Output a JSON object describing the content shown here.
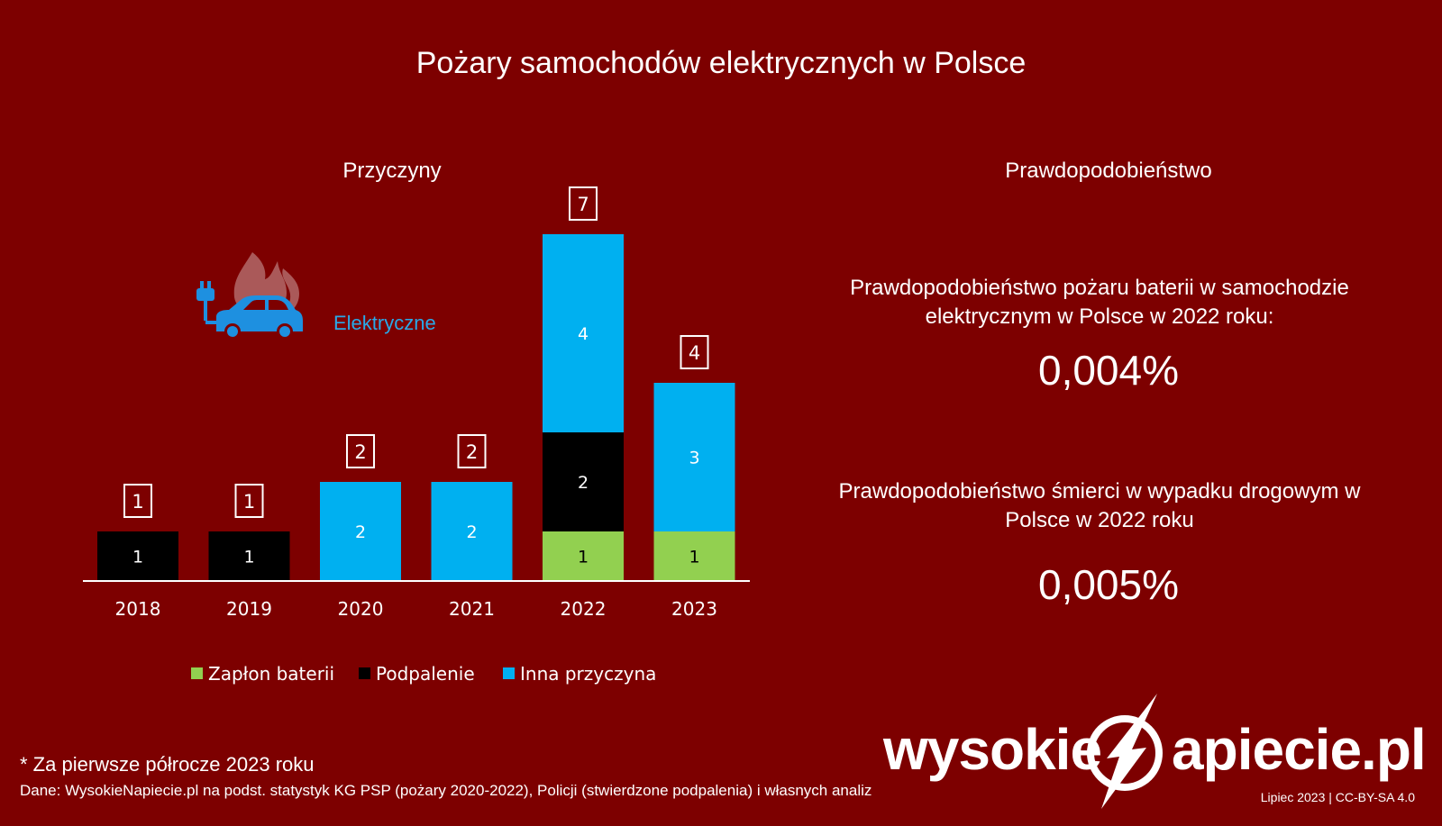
{
  "title": "Pożary samochodów elektrycznych w Polsce",
  "left_subtitle": "Przyczyny",
  "right_subtitle": "Prawdopodobieństwo",
  "car_label": "Elektryczne",
  "icons": [
    "ev-car-fire-icon"
  ],
  "colors": {
    "background": "#7d0000",
    "battery": "#92d050",
    "arson": "#000000",
    "other": "#00b0f0",
    "car_label": "#29a9e8"
  },
  "chart_data": {
    "type": "bar",
    "stacked": true,
    "categories": [
      "2018",
      "2019",
      "2020",
      "2021",
      "2022",
      "2023"
    ],
    "series": [
      {
        "name": "Zapłon baterii",
        "color": "#92d050",
        "values": [
          0,
          0,
          0,
          0,
          1,
          1
        ]
      },
      {
        "name": "Podpalenie",
        "color": "#000000",
        "values": [
          1,
          1,
          0,
          0,
          2,
          0
        ]
      },
      {
        "name": "Inna przyczyna",
        "color": "#00b0f0",
        "values": [
          0,
          0,
          2,
          2,
          4,
          3
        ]
      }
    ],
    "totals": [
      1,
      1,
      2,
      2,
      7,
      4
    ],
    "legend_position": "bottom",
    "grid": false,
    "ylim": [
      0,
      7
    ]
  },
  "stats": [
    {
      "label": "Prawdopodobieństwo pożaru baterii w samochodzie elektrycznym w Polsce w 2022 roku:",
      "value": "0,004%"
    },
    {
      "label": "Prawdopodobieństwo śmierci w wypadku drogowym w Polsce w 2022 roku",
      "value": "0,005%"
    }
  ],
  "footnote": "* Za pierwsze półrocze 2023 roku",
  "source": "Dane: WysokieNapiecie.pl na podst. statystyk KG PSP (pożary 2020-2022), Policji (stwierdzone podpalenia) i własnych analiz",
  "logo": {
    "left": "wysokie",
    "right": "apiecie.pl",
    "mark": "N"
  },
  "credit": "Lipiec 2023  |  CC-BY-SA 4.0"
}
